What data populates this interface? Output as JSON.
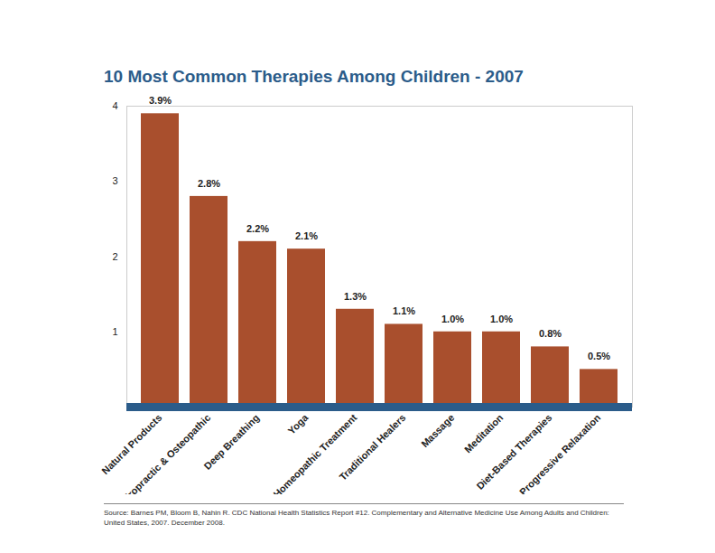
{
  "chart_data": {
    "type": "bar",
    "title": "10 Most Common Therapies Among Children - 2007",
    "categories": [
      "Natural Products",
      "Chiropractic & Osteopathic",
      "Deep Breathing",
      "Yoga",
      "Homeopathic Treatment",
      "Traditional Healers",
      "Massage",
      "Meditation",
      "Diet-Based Therapies",
      "Progressive Relaxation"
    ],
    "values": [
      3.9,
      2.8,
      2.2,
      2.1,
      1.3,
      1.1,
      1.0,
      1.0,
      0.8,
      0.5
    ],
    "value_labels": [
      "3.9%",
      "2.8%",
      "2.2%",
      "2.1%",
      "1.3%",
      "1.1%",
      "1.0%",
      "1.0%",
      "0.8%",
      "0.5%"
    ],
    "data_labels": true,
    "color": "#a94f2d",
    "ylim": [
      0,
      4
    ],
    "yticks": [
      1,
      2,
      3,
      4
    ],
    "grid": false,
    "caption": "Source: Barnes PM, Bloom B, Nahin R. CDC National Health Statistics Report #12. Complementary and Alternative Medicine Use Among Adults and Children: United States, 2007. December 2008."
  }
}
